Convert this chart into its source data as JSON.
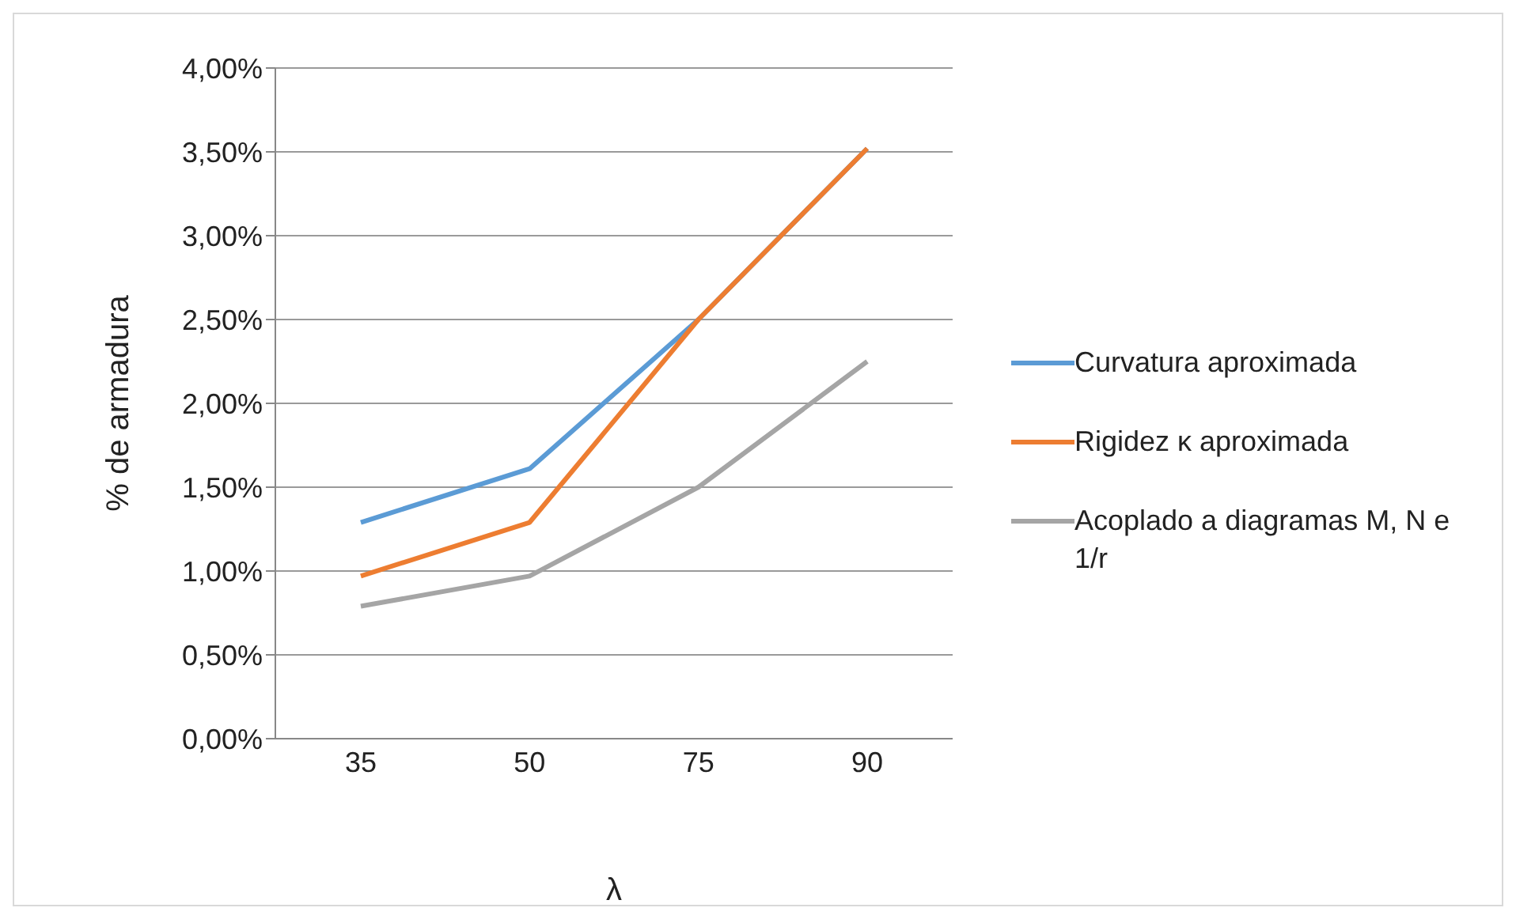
{
  "chart_data": {
    "type": "line",
    "xlabel": "λ",
    "ylabel": "% de armadura",
    "categories": [
      "35",
      "50",
      "75",
      "90"
    ],
    "series": [
      {
        "name": "Curvatura aproximada",
        "color": "#5b9bd5",
        "values": [
          1.29,
          1.61,
          2.5,
          3.52
        ]
      },
      {
        "name": "Rigidez κ aproximada",
        "color": "#ed7d31",
        "values": [
          0.97,
          1.29,
          2.5,
          3.52
        ]
      },
      {
        "name": "Acoplado a diagramas M, N e 1/r",
        "color": "#a5a5a5",
        "values": [
          0.79,
          0.97,
          1.5,
          2.25
        ]
      }
    ],
    "ylim": [
      0,
      4
    ],
    "yticks": [
      {
        "value": 0,
        "label": "0,00%"
      },
      {
        "value": 0.5,
        "label": "0,50%"
      },
      {
        "value": 1,
        "label": "1,00%"
      },
      {
        "value": 1.5,
        "label": "1,50%"
      },
      {
        "value": 2,
        "label": "2,00%"
      },
      {
        "value": 2.5,
        "label": "2,50%"
      },
      {
        "value": 3,
        "label": "3,00%"
      },
      {
        "value": 3.5,
        "label": "3,50%"
      },
      {
        "value": 4,
        "label": "4,00%"
      }
    ],
    "grid": "y",
    "legend": "right",
    "marker": "none",
    "line_style": "solid"
  }
}
